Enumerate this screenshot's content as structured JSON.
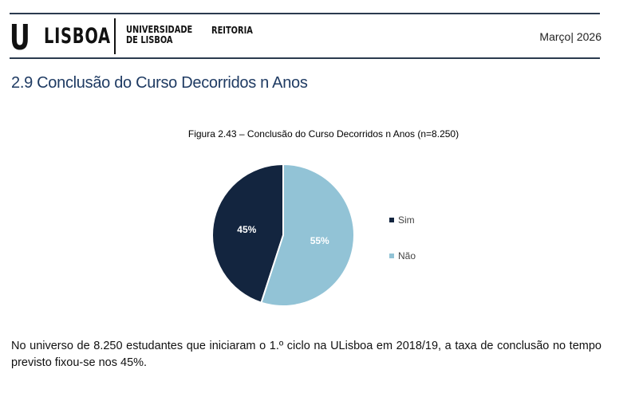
{
  "header": {
    "logo_u": "U",
    "logo_lisboa": "LISBOA",
    "university_line1": "UNIVERSIDADE",
    "university_line2": "DE LISBOA",
    "unit": "REITORIA",
    "date": "Março| 2026"
  },
  "section_title": "2.9 Conclusão do Curso Decorridos n Anos",
  "paragraph": "No universo de 8.250 estudantes que iniciaram o 1.º ciclo na ULisboa em 2018/19, a taxa de conclusão no tempo previsto fixou-se nos 45%.",
  "colors": {
    "sim": "#13253f",
    "nao": "#92c3d6"
  },
  "chart_data": {
    "type": "pie",
    "title": "Figura 2.43 – Conclusão do Curso Decorridos n Anos (n=8.250)",
    "categories": [
      "Sim",
      "Não"
    ],
    "values": [
      45,
      55
    ],
    "labels": [
      "45%",
      "55%"
    ],
    "legend": "right"
  }
}
